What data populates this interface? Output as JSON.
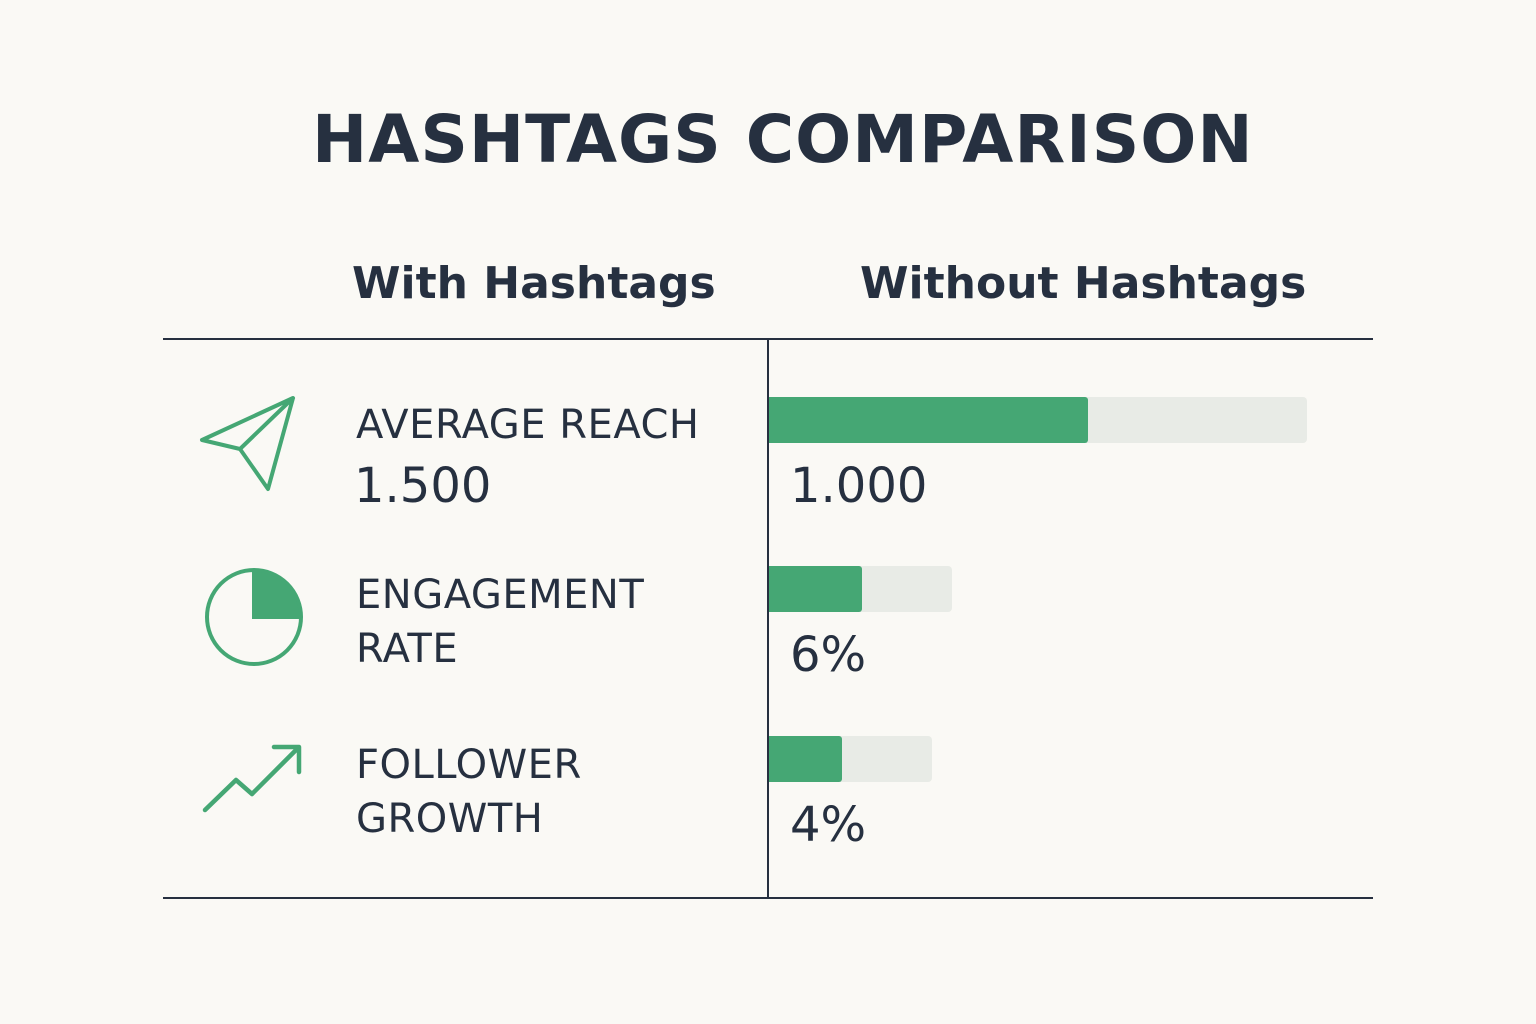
{
  "colors": {
    "accent": "#45a774",
    "track": "#e8ebe6",
    "text": "#263040",
    "background": "#faf9f5"
  },
  "chart_data": {
    "type": "table",
    "title": "HASHTAGS COMPARISON",
    "columns": [
      "With Hashtags",
      "Without Hashtags"
    ],
    "rows": [
      {
        "icon": "paper-plane-icon",
        "label": "AVERAGE REACH",
        "with_value": "1.500",
        "without_value": "1.000",
        "without_fraction": 0.593
      },
      {
        "icon": "pie-chart-icon",
        "label": "ENGAGEMENT RATE",
        "label_lines": [
          "ENGAGEMENT",
          "RATE"
        ],
        "with_value": "",
        "without_value": "6%",
        "without_fraction": 0.51
      },
      {
        "icon": "trend-up-icon",
        "label": "FOLLOWER GROWTH",
        "label_lines": [
          "FOLLOWER",
          "GROWTH"
        ],
        "with_value": "",
        "without_value": "4%",
        "without_fraction": 0.45
      }
    ]
  }
}
